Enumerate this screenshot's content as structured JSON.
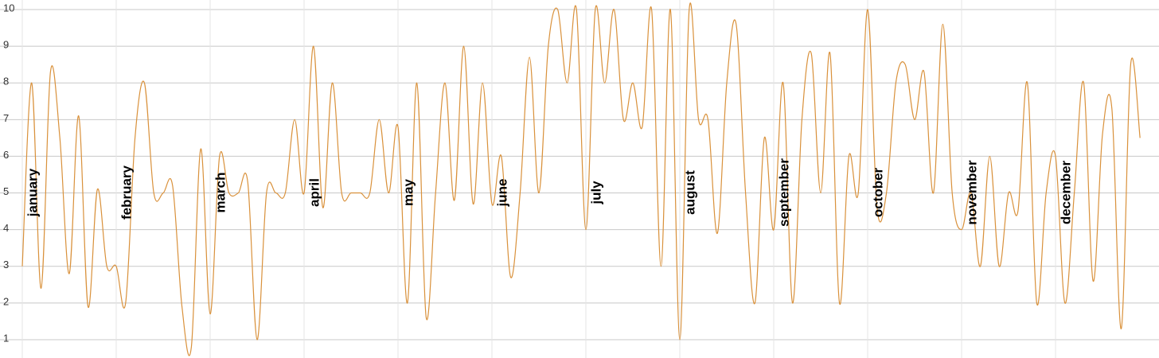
{
  "chart_data": {
    "type": "line",
    "categories": [
      "january",
      null,
      null,
      null,
      null,
      null,
      null,
      null,
      null,
      null,
      "february",
      null,
      null,
      null,
      null,
      null,
      null,
      null,
      null,
      null,
      "march",
      null,
      null,
      null,
      null,
      null,
      null,
      null,
      null,
      null,
      "april",
      null,
      null,
      null,
      null,
      null,
      null,
      null,
      null,
      null,
      "may",
      null,
      null,
      null,
      null,
      null,
      null,
      null,
      null,
      null,
      "june",
      null,
      null,
      null,
      null,
      null,
      null,
      null,
      null,
      null,
      "july",
      null,
      null,
      null,
      null,
      null,
      null,
      null,
      null,
      null,
      "august",
      null,
      null,
      null,
      null,
      null,
      null,
      null,
      null,
      null,
      "september",
      null,
      null,
      null,
      null,
      null,
      null,
      null,
      null,
      null,
      "october",
      null,
      null,
      null,
      null,
      null,
      null,
      null,
      null,
      null,
      "november",
      null,
      null,
      null,
      null,
      null,
      null,
      null,
      null,
      null,
      "december",
      null,
      null,
      null,
      null,
      null,
      null,
      null,
      null,
      null
    ],
    "series": [
      {
        "color": "#d9913b",
        "values": [
          3,
          8,
          2.4,
          8.3,
          6.5,
          2.8,
          7.1,
          1.9,
          5.1,
          3,
          3,
          2,
          6.5,
          8,
          5,
          5,
          5.2,
          1.9,
          0.8,
          6.2,
          1.7,
          6,
          5,
          5,
          5.3,
          1,
          5,
          5,
          5,
          7,
          5,
          9,
          4.6,
          8,
          5,
          5,
          5,
          5,
          7,
          5,
          6.8,
          2,
          8,
          1.6,
          5,
          8,
          4.8,
          9,
          4.7,
          8,
          4.7,
          6,
          2.7,
          5,
          8.7,
          5,
          9,
          10,
          8,
          10,
          4,
          10,
          8,
          10,
          7,
          8,
          6.8,
          10,
          3,
          10,
          1,
          10,
          7,
          7,
          3.9,
          8,
          9.6,
          5,
          2,
          6.5,
          4,
          8,
          2,
          7,
          8.8,
          5,
          8.8,
          2,
          6,
          5,
          10,
          4.6,
          5,
          8,
          8.5,
          7,
          8.3,
          5,
          9.6,
          5,
          4,
          5,
          3,
          6,
          3,
          5,
          4.5,
          8,
          2,
          5,
          6,
          2,
          5,
          8,
          2.6,
          6.6,
          7.3,
          1.3,
          8.5,
          6.5
        ]
      }
    ],
    "ylim": [
      0.5,
      10
    ],
    "yticks": [
      1,
      2,
      3,
      4,
      5,
      6,
      7,
      8,
      9,
      10
    ],
    "grid": true
  }
}
